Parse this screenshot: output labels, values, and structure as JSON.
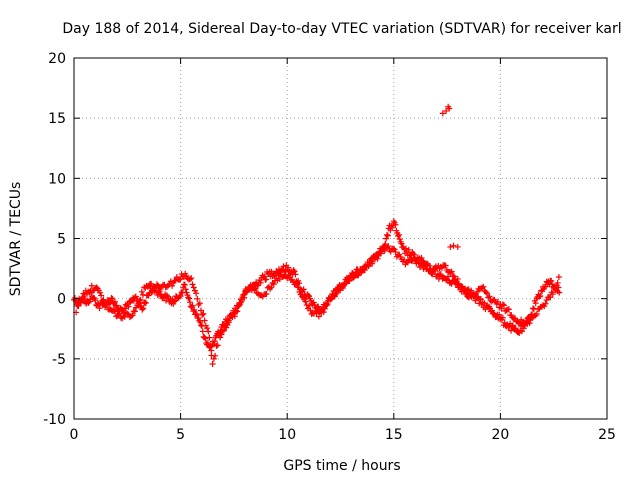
{
  "chart_data": {
    "type": "scatter",
    "title": "Day 188 of 2014, Sidereal Day-to-day VTEC variation (SDTVAR) for receiver karl",
    "xlabel": "GPS time / hours",
    "ylabel": "SDTVAR / TECUs",
    "xlim": [
      0,
      25
    ],
    "ylim": [
      -10,
      20
    ],
    "xticks": [
      0,
      5,
      10,
      15,
      20,
      25
    ],
    "yticks": [
      -10,
      -5,
      0,
      5,
      10,
      15,
      20
    ],
    "xtick_labels": [
      "0",
      "5",
      "10",
      "15",
      "20",
      "25"
    ],
    "ytick_labels": [
      "-10",
      "-5",
      "0",
      "5",
      "10",
      "15",
      "20"
    ],
    "grid": true,
    "marker": "+",
    "series": [
      {
        "name": "SDTVAR",
        "color": "#ff0000",
        "x": [
          0.0,
          0.2,
          0.4,
          0.6,
          0.8,
          1.0,
          1.2,
          1.5,
          1.8,
          2.0,
          2.3,
          2.6,
          2.9,
          3.2,
          3.5,
          3.8,
          4.1,
          4.4,
          4.7,
          5.0,
          5.2,
          5.4,
          5.6,
          5.8,
          6.0,
          6.2,
          6.4,
          6.6,
          6.8,
          7.0,
          7.3,
          7.6,
          7.9,
          8.2,
          8.5,
          8.8,
          9.1,
          9.4,
          9.7,
          10.0,
          10.3,
          10.6,
          10.9,
          11.2,
          11.5,
          11.8,
          12.1,
          12.4,
          12.7,
          13.0,
          13.3,
          13.6,
          13.9,
          14.2,
          14.4,
          14.6,
          14.8,
          15.0,
          15.2,
          15.4,
          15.7,
          16.0,
          16.3,
          16.6,
          16.9,
          17.2,
          17.5,
          17.8,
          18.1,
          18.4,
          18.7,
          19.0,
          19.3,
          19.6,
          19.9,
          20.2,
          20.5,
          20.8,
          21.1,
          21.4,
          21.7,
          22.0,
          22.3,
          22.6,
          22.8
        ],
        "y": [
          0.0,
          -0.3,
          0.2,
          -0.5,
          0.3,
          -0.2,
          -0.6,
          -0.4,
          0.0,
          -0.8,
          -1.0,
          -0.5,
          0.2,
          -0.9,
          0.5,
          0.8,
          0.3,
          0.0,
          -0.3,
          0.5,
          1.0,
          0.0,
          -1.0,
          -1.5,
          -2.5,
          -3.5,
          -4.2,
          -3.6,
          -2.8,
          -2.2,
          -1.6,
          -0.8,
          0.0,
          0.8,
          1.2,
          1.6,
          2.0,
          2.2,
          2.4,
          2.5,
          2.2,
          1.0,
          0.3,
          -0.5,
          -1.0,
          -0.6,
          0.2,
          0.8,
          1.3,
          1.8,
          2.2,
          2.6,
          3.0,
          3.5,
          4.0,
          4.7,
          5.8,
          6.3,
          5.3,
          4.1,
          3.8,
          3.4,
          3.1,
          2.6,
          2.2,
          1.8,
          1.6,
          1.4,
          1.0,
          0.5,
          0.2,
          -0.2,
          -0.6,
          -1.0,
          -1.5,
          -2.0,
          -2.4,
          -2.8,
          -2.4,
          -1.5,
          0.0,
          0.8,
          1.4,
          1.0,
          0.5
        ],
        "x_secondary": [
          0.1,
          0.5,
          1.0,
          1.6,
          2.2,
          2.8,
          3.4,
          4.0,
          4.6,
          5.1,
          5.5,
          5.9,
          6.3,
          6.5,
          6.8,
          7.2,
          7.6,
          8.0,
          8.4,
          8.8,
          9.2,
          9.6,
          10.0,
          10.4,
          10.8,
          11.2,
          11.6,
          12.0,
          12.4,
          12.8,
          13.2,
          13.6,
          14.0,
          14.4,
          14.8,
          15.2,
          15.6,
          16.0,
          16.4,
          16.8,
          17.2,
          17.6,
          18.0,
          18.4,
          18.8,
          19.2,
          19.6,
          20.0,
          20.4,
          20.8,
          21.2,
          21.6,
          22.0,
          22.4,
          22.8
        ],
        "y_secondary": [
          -1.0,
          0.5,
          1.0,
          -0.8,
          -1.5,
          -1.2,
          1.2,
          1.0,
          1.3,
          2.0,
          1.5,
          -0.6,
          -2.6,
          -5.5,
          -3.2,
          -2.0,
          -1.2,
          0.6,
          1.0,
          0.3,
          0.8,
          1.8,
          1.8,
          1.2,
          -0.2,
          -1.2,
          -1.3,
          0.0,
          0.8,
          1.5,
          2.0,
          2.4,
          3.2,
          4.0,
          4.2,
          3.6,
          3.0,
          3.2,
          2.6,
          2.2,
          2.8,
          2.4,
          1.4,
          0.6,
          0.4,
          0.8,
          -0.2,
          -0.6,
          -1.0,
          -1.8,
          -2.2,
          -1.3,
          -0.5,
          0.3,
          1.8
        ],
        "x_outliers": [
          17.3,
          17.45,
          17.6,
          17.55,
          17.65,
          17.8,
          18.0
        ],
        "y_outliers": [
          15.4,
          15.6,
          15.8,
          15.95,
          4.3,
          4.4,
          4.3
        ]
      }
    ]
  }
}
